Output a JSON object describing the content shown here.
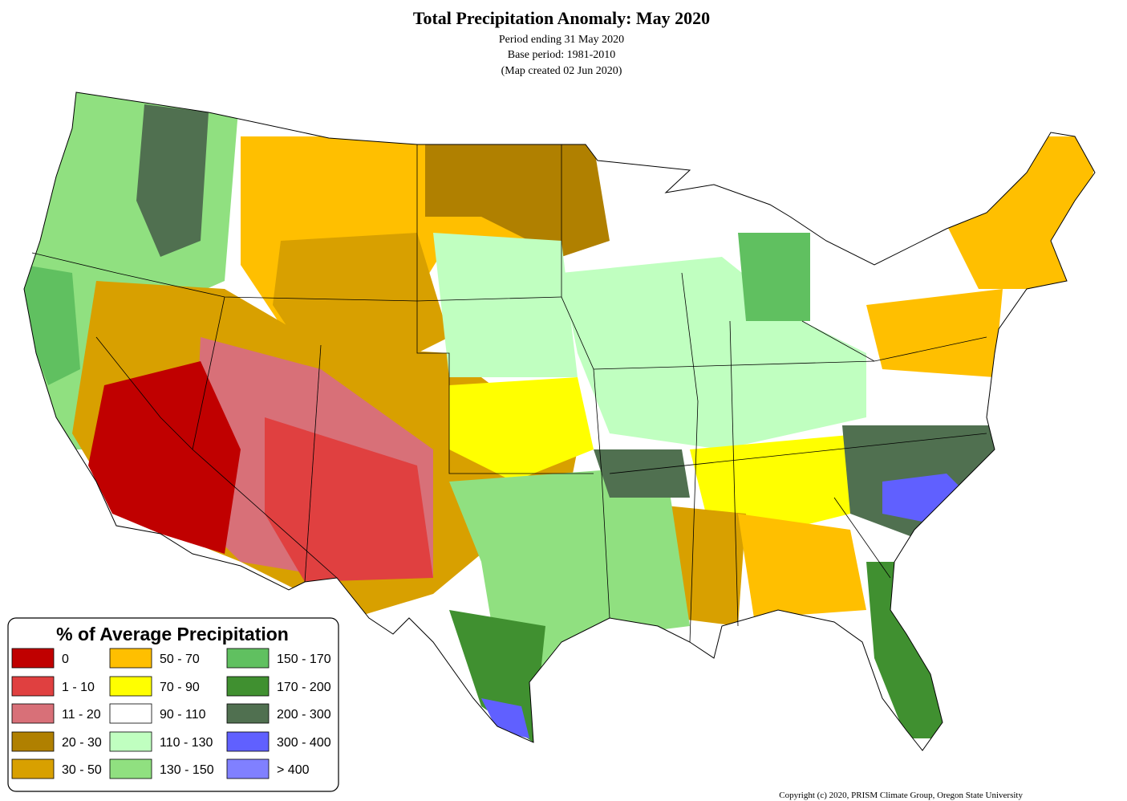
{
  "title": "Total Precipitation Anomaly: May 2020",
  "subtitle": [
    "Period ending 31 May 2020",
    "Base period: 1981-2010",
    "(Map created 02 Jun 2020)"
  ],
  "legend": {
    "title": "% of Average Precipitation",
    "items": [
      {
        "label": "0",
        "color": "#c00000"
      },
      {
        "label": "1 - 10",
        "color": "#e04040"
      },
      {
        "label": "11 - 20",
        "color": "#d87078"
      },
      {
        "label": "20 - 30",
        "color": "#b08000"
      },
      {
        "label": "30 - 50",
        "color": "#d8a000"
      },
      {
        "label": "50 - 70",
        "color": "#ffbf00"
      },
      {
        "label": "70 - 90",
        "color": "#ffff00"
      },
      {
        "label": "90 - 110",
        "color": "#ffffff"
      },
      {
        "label": "110 - 130",
        "color": "#c0ffc0"
      },
      {
        "label": "130 - 150",
        "color": "#90e080"
      },
      {
        "label": "150 - 170",
        "color": "#60c060"
      },
      {
        "label": "170 - 200",
        "color": "#409030"
      },
      {
        "label": "200 - 300",
        "color": "#507050"
      },
      {
        "label": "300 - 400",
        "color": "#6060ff"
      },
      {
        "label": "> 400",
        "color": "#8080ff"
      }
    ]
  },
  "copyright": "Copyright (c) 2020, PRISM Climate Group, Oregon State University"
}
